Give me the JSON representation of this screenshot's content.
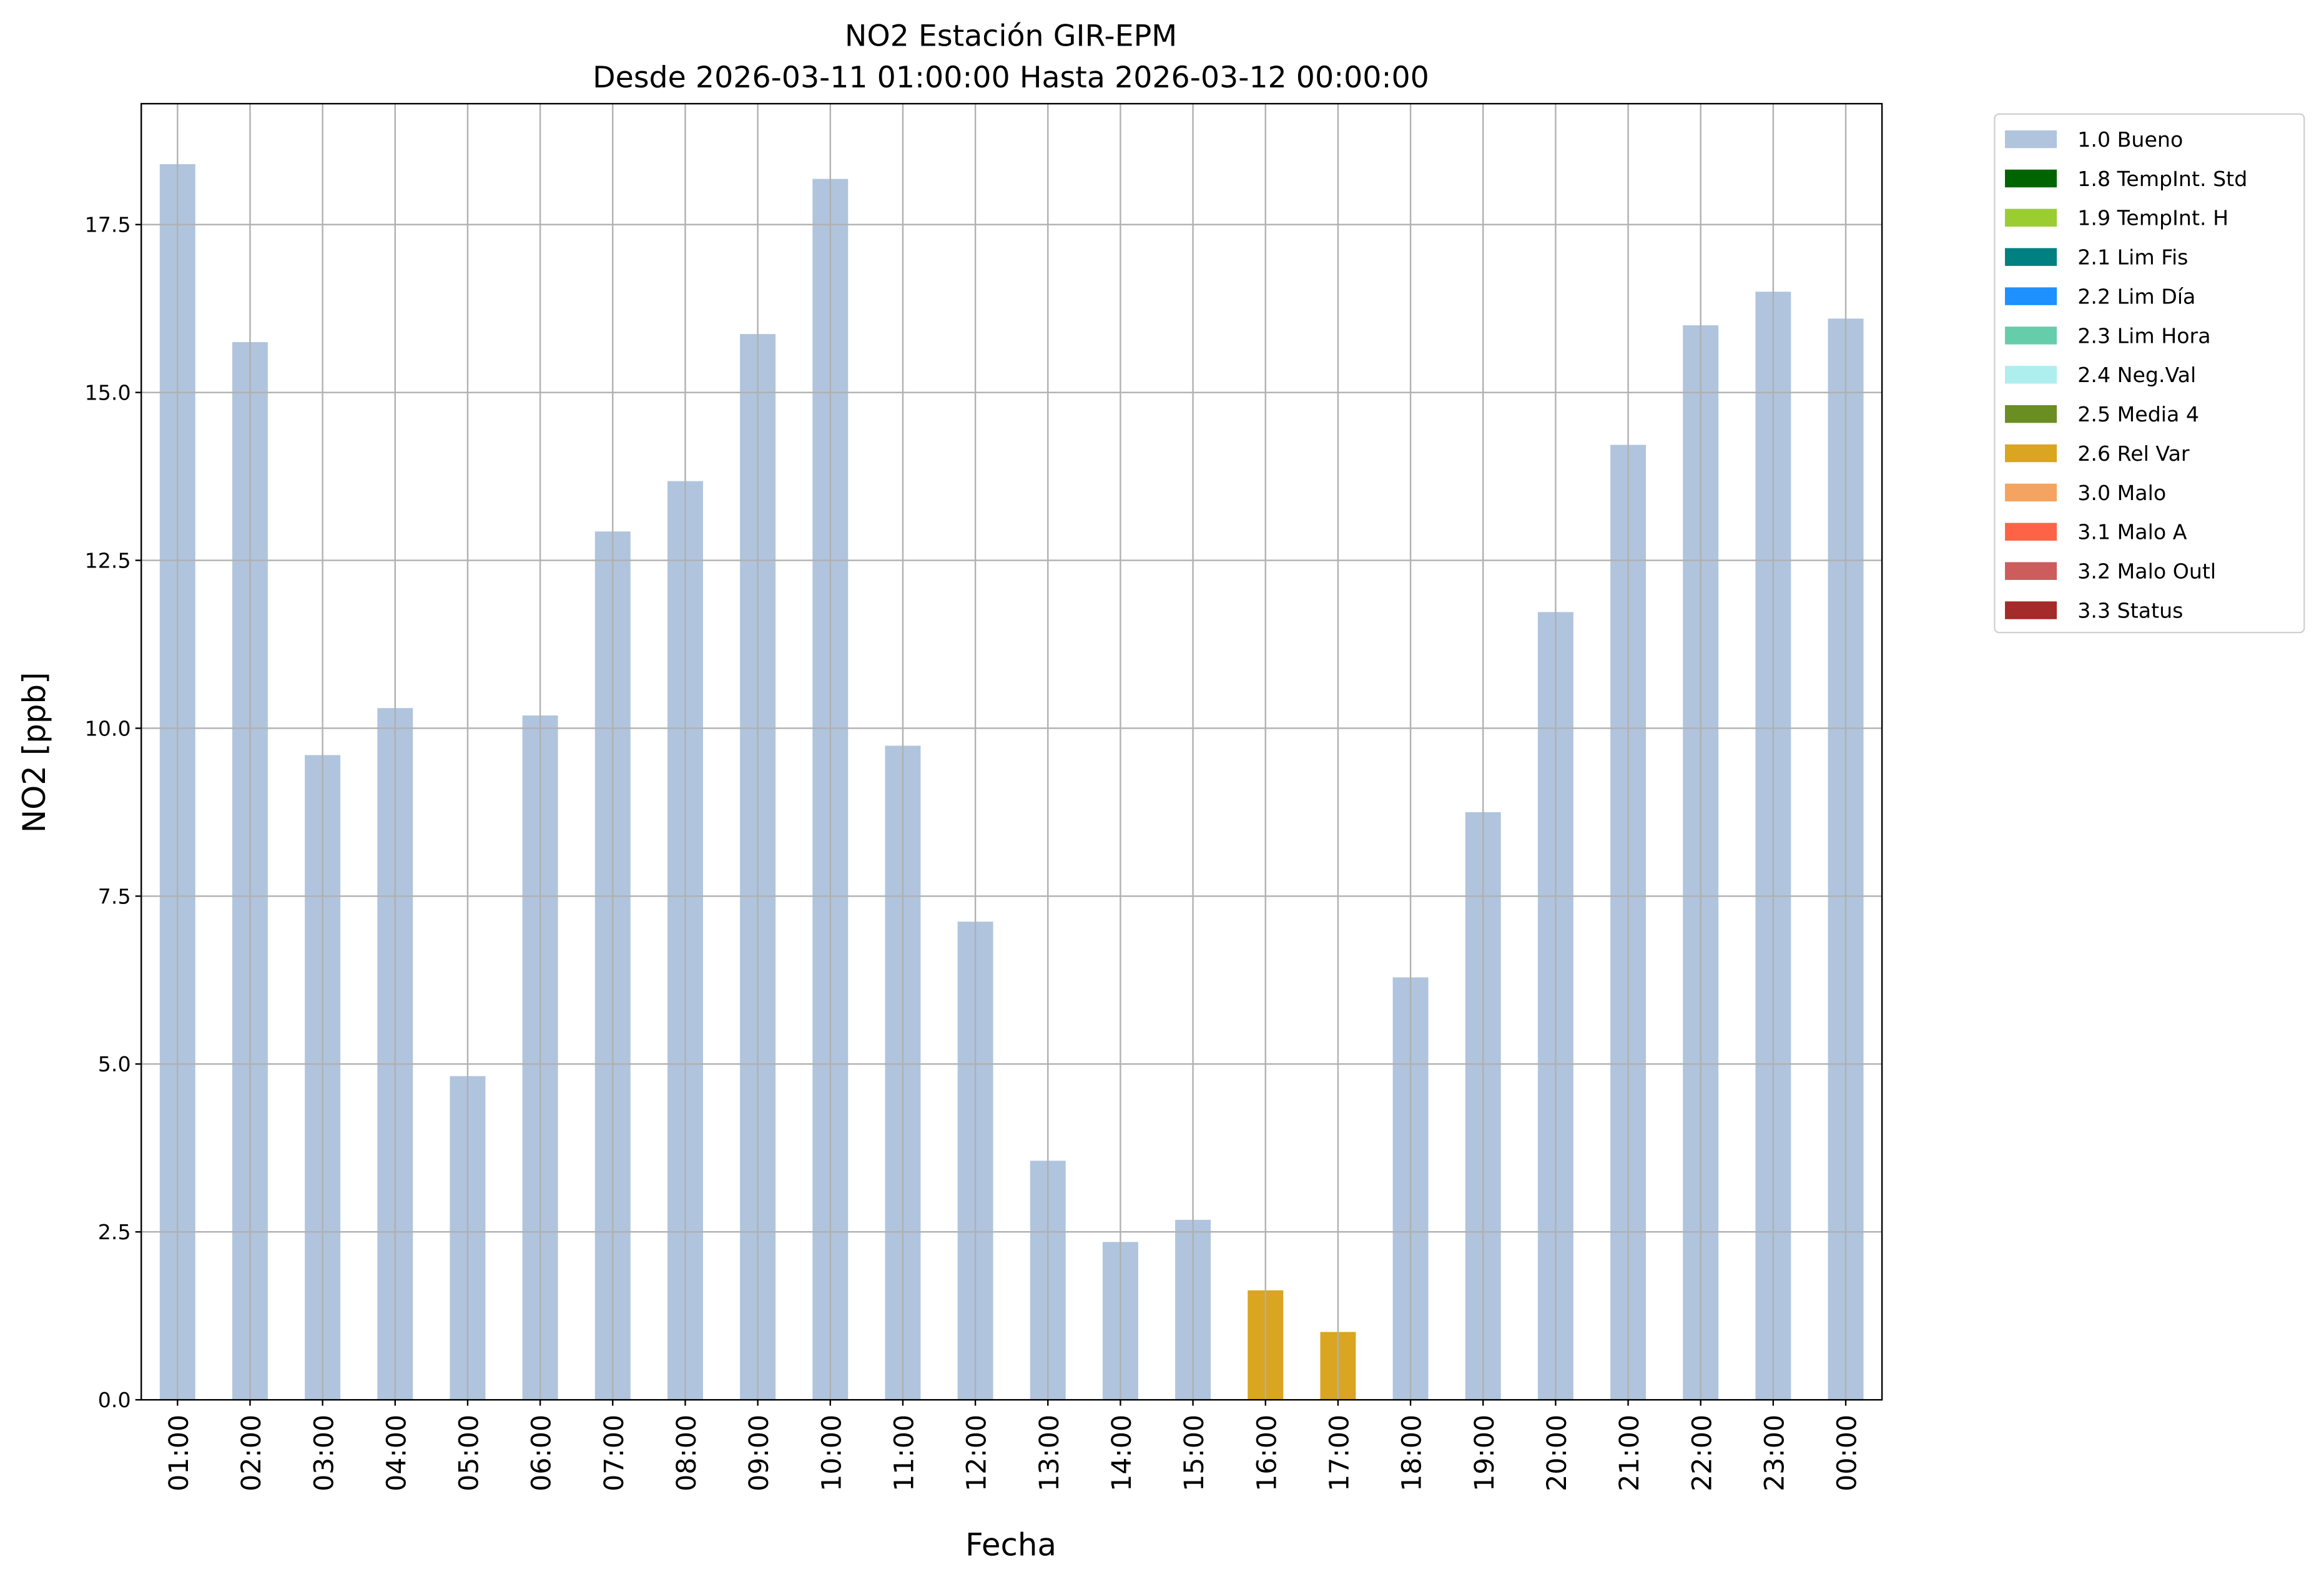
{
  "chart_data": {
    "type": "bar",
    "title": "NO2 Estación GIR-EPM",
    "subtitle": "Desde 2026-03-11 01:00:00 Hasta 2026-03-12 00:00:00",
    "xlabel": "Fecha",
    "ylabel": "NO2 [ppb]",
    "ylim": [
      0,
      19.3
    ],
    "yticks": [
      "0.0",
      "2.5",
      "5.0",
      "7.5",
      "10.0",
      "12.5",
      "15.0",
      "17.5"
    ],
    "grid": true,
    "legend_placement": "outside-top-right",
    "categories": [
      "01:00",
      "02:00",
      "03:00",
      "04:00",
      "05:00",
      "06:00",
      "07:00",
      "08:00",
      "09:00",
      "10:00",
      "11:00",
      "12:00",
      "13:00",
      "14:00",
      "15:00",
      "16:00",
      "17:00",
      "18:00",
      "19:00",
      "20:00",
      "21:00",
      "22:00",
      "23:00",
      "00:00"
    ],
    "values": [
      18.4,
      15.75,
      9.6,
      10.3,
      4.82,
      10.19,
      12.93,
      13.68,
      15.87,
      18.18,
      9.74,
      7.12,
      3.56,
      2.35,
      2.68,
      1.63,
      1.01,
      6.29,
      8.75,
      11.73,
      14.22,
      16.0,
      16.5,
      16.1
    ],
    "flags": [
      "1.0 Bueno",
      "1.0 Bueno",
      "1.0 Bueno",
      "1.0 Bueno",
      "1.0 Bueno",
      "1.0 Bueno",
      "1.0 Bueno",
      "1.0 Bueno",
      "1.0 Bueno",
      "1.0 Bueno",
      "1.0 Bueno",
      "1.0 Bueno",
      "1.0 Bueno",
      "1.0 Bueno",
      "1.0 Bueno",
      "2.6 Rel Var",
      "2.6 Rel Var",
      "1.0 Bueno",
      "1.0 Bueno",
      "1.0 Bueno",
      "1.0 Bueno",
      "1.0 Bueno",
      "1.0 Bueno",
      "1.0 Bueno"
    ],
    "legend": [
      {
        "name": "1.0 Bueno",
        "color": "#b0c4de"
      },
      {
        "name": "1.8 TempInt. Std",
        "color": "#006400"
      },
      {
        "name": "1.9 TempInt. H",
        "color": "#9acd32"
      },
      {
        "name": "2.1 Lim Fis",
        "color": "#008080"
      },
      {
        "name": "2.2 Lim Día",
        "color": "#1e90ff"
      },
      {
        "name": "2.3 Lim Hora",
        "color": "#66cdaa"
      },
      {
        "name": "2.4 Neg.Val",
        "color": "#afeeee"
      },
      {
        "name": "2.5 Media 4",
        "color": "#6b8e23"
      },
      {
        "name": "2.6 Rel Var",
        "color": "#daa520"
      },
      {
        "name": "3.0 Malo",
        "color": "#f4a460"
      },
      {
        "name": "3.1 Malo A",
        "color": "#ff6347"
      },
      {
        "name": "3.2 Malo Outl",
        "color": "#cd5c5c"
      },
      {
        "name": "3.3 Status",
        "color": "#a52a2a"
      }
    ]
  }
}
